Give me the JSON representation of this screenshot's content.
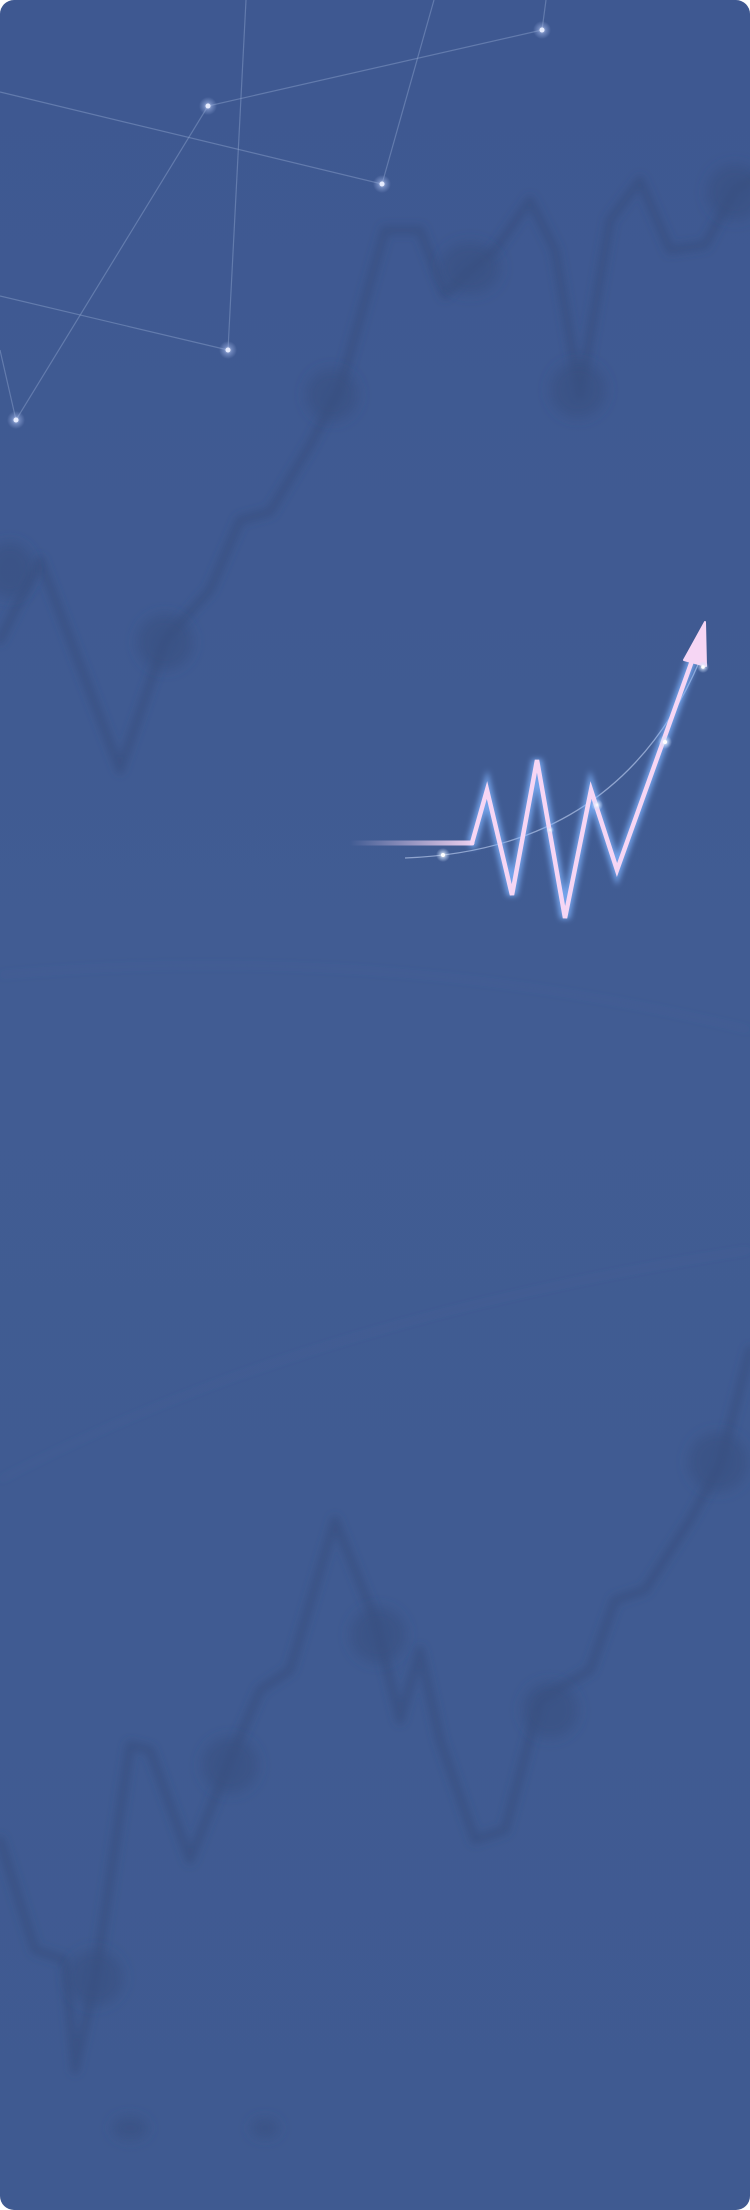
{
  "background": {
    "gradient_top": "#3e5891",
    "gradient_mid": "#415c93",
    "gradient_bottom": "#3f5a91"
  },
  "decorations": {
    "network_color": "#8fa4cf",
    "shadow_line_color": "#37507f"
  },
  "hero_graphic": {
    "icon": "rising-zigzag-arrow-icon",
    "stroke_color": "#f6d6f4",
    "glow_color": "#7fb4ff",
    "trend": "up"
  }
}
